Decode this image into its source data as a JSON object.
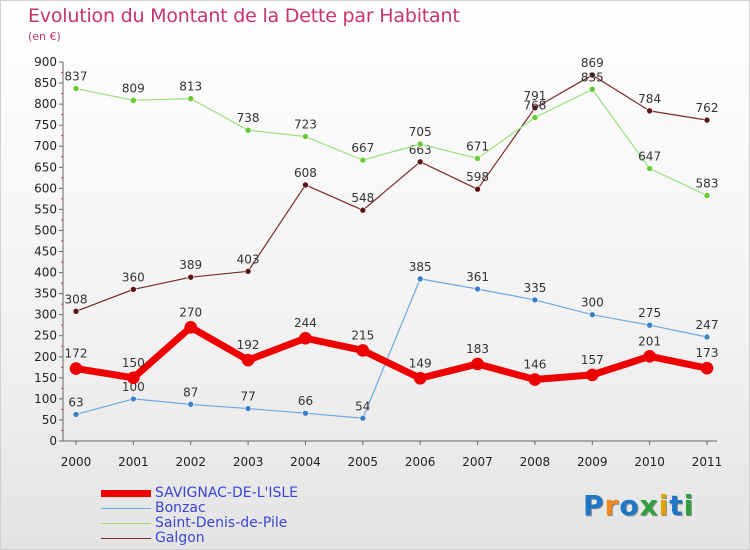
{
  "title": "Evolution du Montant de la Dette par Habitant",
  "subtitle": "(en €)",
  "brand": {
    "text": "Proxiti",
    "letter_colors": [
      "#1f77c8",
      "#f08a1a",
      "#1f77c8",
      "#2e9e3e",
      "#e0a400",
      "#1f77c8",
      "#2e9e3e"
    ]
  },
  "chart_data": {
    "type": "line",
    "x": [
      "2000",
      "2001",
      "2002",
      "2003",
      "2004",
      "2005",
      "2006",
      "2007",
      "2008",
      "2009",
      "2010",
      "2011"
    ],
    "ylim": [
      0,
      900
    ],
    "yticks": [
      0,
      50,
      100,
      150,
      200,
      250,
      300,
      350,
      400,
      450,
      500,
      550,
      600,
      650,
      700,
      750,
      800,
      850,
      900
    ],
    "grid": false,
    "legend_position": "bottom-left",
    "series": [
      {
        "name": "SAVIGNAC-DE-L'ISLE",
        "color": "#ee0000",
        "marker": "#ee0000",
        "width": 7,
        "values": [
          172,
          150,
          270,
          192,
          244,
          215,
          149,
          183,
          146,
          157,
          201,
          173
        ],
        "labels": [
          "172",
          "150",
          "270",
          "192",
          "244",
          "215",
          "149",
          "183",
          "146",
          "157",
          "201",
          "173"
        ]
      },
      {
        "name": "Bonzac",
        "color": "#6aa8e0",
        "marker": "#3b82c4",
        "width": 1.2,
        "values": [
          63,
          100,
          87,
          77,
          66,
          54,
          385,
          361,
          335,
          300,
          275,
          247
        ],
        "labels": [
          "63",
          "100",
          "87",
          "77",
          "66",
          "54",
          "385",
          "361",
          "335",
          "300",
          "275",
          "247"
        ]
      },
      {
        "name": "Saint-Denis-de-Pile",
        "color": "#9be07a",
        "marker": "#66cc33",
        "width": 1.2,
        "values": [
          837,
          809,
          813,
          738,
          723,
          667,
          705,
          671,
          768,
          835,
          647,
          583
        ],
        "labels": [
          "837",
          "809",
          "813",
          "738",
          "723",
          "667",
          "705",
          "671",
          "768",
          "835",
          "647",
          "583"
        ]
      },
      {
        "name": "Galgon",
        "color": "#7a2a2a",
        "marker": "#5a1414",
        "width": 1.2,
        "values": [
          308,
          360,
          389,
          403,
          608,
          548,
          663,
          598,
          791,
          869,
          784,
          762
        ],
        "labels": [
          "308",
          "360",
          "389",
          "403",
          "608",
          "548",
          "663",
          "598",
          "791",
          "869",
          "784",
          "762"
        ]
      }
    ]
  }
}
